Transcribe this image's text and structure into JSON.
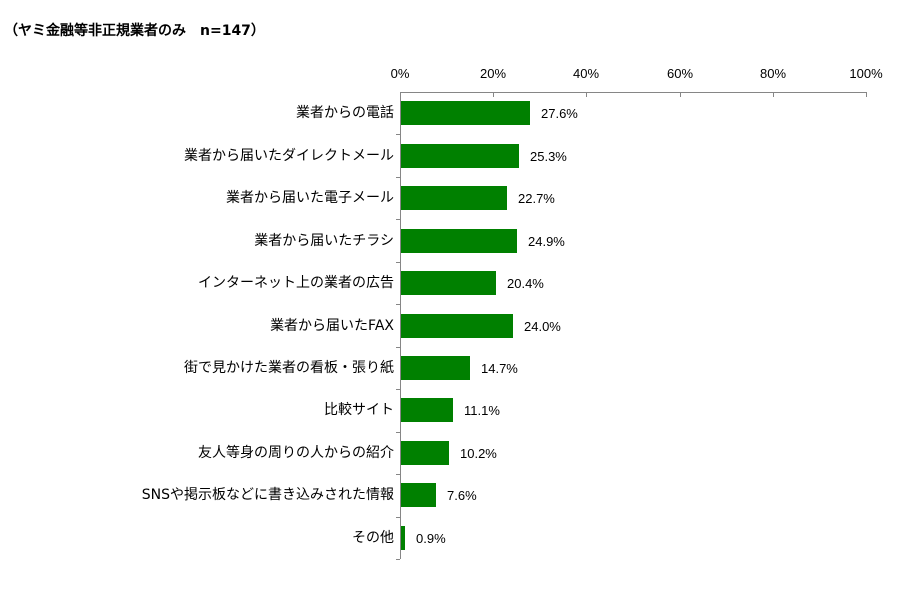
{
  "title": "（ヤミ金融等非正規業者のみ　n=147）",
  "chart_data": {
    "type": "bar",
    "orientation": "horizontal",
    "title": "（ヤミ金融等非正規業者のみ　n=147）",
    "xlabel": "",
    "ylabel": "",
    "xlim": [
      0,
      100
    ],
    "x_ticks": [
      "0%",
      "20%",
      "40%",
      "60%",
      "80%",
      "100%"
    ],
    "grid": false,
    "legend": null,
    "bar_color": "#008000",
    "categories": [
      "業者からの電話",
      "業者から届いたダイレクトメール",
      "業者から届いた電子メール",
      "業者から届いたチラシ",
      "インターネット上の業者の広告",
      "業者から届いたFAX",
      "街で見かけた業者の看板・張り紙",
      "比較サイト",
      "友人等身の周りの人からの紹介",
      "SNSや掲示板などに書き込みされた情報",
      "その他"
    ],
    "values": [
      27.6,
      25.3,
      22.7,
      24.9,
      20.4,
      24.0,
      14.7,
      11.1,
      10.2,
      7.6,
      0.9
    ],
    "value_labels": [
      "27.6%",
      "25.3%",
      "22.7%",
      "24.9%",
      "20.4%",
      "24.0%",
      "14.7%",
      "11.1%",
      "10.2%",
      "7.6%",
      "0.9%"
    ]
  }
}
